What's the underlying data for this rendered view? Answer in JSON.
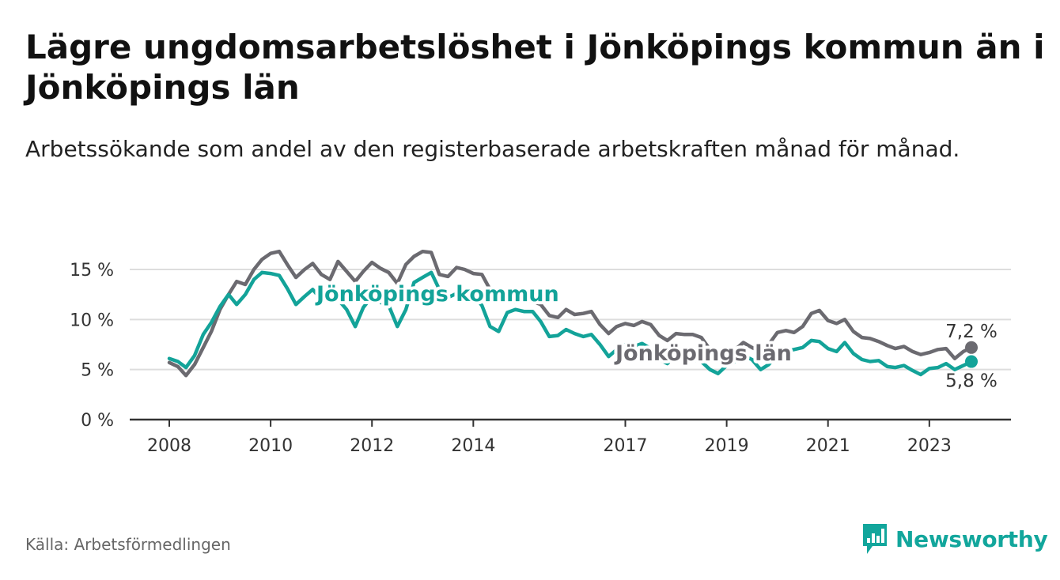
{
  "title": "Lägre ungdomsarbetslöshet i Jönköpings kommun än i Jönköpings län",
  "subtitle": "Arbetssökande som andel av den registerbaserade arbetskraften månad för månad.",
  "source": "Källa: Arbetsförmedlingen",
  "brand": "Newsworthy",
  "colors": {
    "kommun": "#13a399",
    "lan": "#6b6a70",
    "grid": "#dddddd",
    "axis": "#333333",
    "brand": "#12a69c"
  },
  "chart_data": {
    "type": "line",
    "title": "Lägre ungdomsarbetslöshet i Jönköpings kommun än i Jönköpings län",
    "xlabel": "",
    "ylabel": "",
    "x_range": [
      2008.0,
      2023.83
    ],
    "ylim": [
      0,
      15
    ],
    "y_ticks": [
      0,
      5,
      10,
      15
    ],
    "y_tick_labels": [
      "0 %",
      "5 %",
      "10 %",
      "15 %"
    ],
    "x_ticks": [
      2008,
      2010,
      2012,
      2014,
      2017,
      2019,
      2021,
      2023
    ],
    "x_tick_labels": [
      "2008",
      "2010",
      "2012",
      "2014",
      "2017",
      "2019",
      "2021",
      "2023"
    ],
    "grid": true,
    "series": [
      {
        "name": "Jönköpings län",
        "key": "lan",
        "end_label": "7,2 %",
        "points": [
          [
            2008.0,
            5.7
          ],
          [
            2008.17,
            5.3
          ],
          [
            2008.33,
            4.4
          ],
          [
            2008.5,
            5.5
          ],
          [
            2008.67,
            7.2
          ],
          [
            2008.83,
            8.8
          ],
          [
            2009.0,
            11.0
          ],
          [
            2009.17,
            12.5
          ],
          [
            2009.33,
            13.8
          ],
          [
            2009.5,
            13.5
          ],
          [
            2009.67,
            15.0
          ],
          [
            2009.83,
            16.0
          ],
          [
            2010.0,
            16.6
          ],
          [
            2010.17,
            16.8
          ],
          [
            2010.33,
            15.5
          ],
          [
            2010.5,
            14.2
          ],
          [
            2010.67,
            15.0
          ],
          [
            2010.83,
            15.6
          ],
          [
            2011.0,
            14.5
          ],
          [
            2011.17,
            14.0
          ],
          [
            2011.33,
            15.8
          ],
          [
            2011.5,
            14.8
          ],
          [
            2011.67,
            13.8
          ],
          [
            2011.83,
            14.8
          ],
          [
            2012.0,
            15.7
          ],
          [
            2012.17,
            15.1
          ],
          [
            2012.33,
            14.7
          ],
          [
            2012.5,
            13.6
          ],
          [
            2012.67,
            15.5
          ],
          [
            2012.83,
            16.3
          ],
          [
            2013.0,
            16.8
          ],
          [
            2013.17,
            16.7
          ],
          [
            2013.33,
            14.5
          ],
          [
            2013.5,
            14.3
          ],
          [
            2013.67,
            15.2
          ],
          [
            2013.83,
            15.0
          ],
          [
            2014.0,
            14.6
          ],
          [
            2014.17,
            14.5
          ],
          [
            2014.33,
            13.0
          ],
          [
            2014.5,
            12.5
          ],
          [
            2014.67,
            12.0
          ],
          [
            2014.83,
            11.7
          ],
          [
            2015.0,
            11.9
          ],
          [
            2015.17,
            11.8
          ],
          [
            2015.33,
            11.5
          ],
          [
            2015.5,
            10.4
          ],
          [
            2015.67,
            10.2
          ],
          [
            2015.83,
            11.0
          ],
          [
            2016.0,
            10.5
          ],
          [
            2016.17,
            10.6
          ],
          [
            2016.33,
            10.8
          ],
          [
            2016.5,
            9.5
          ],
          [
            2016.67,
            8.6
          ],
          [
            2016.83,
            9.3
          ],
          [
            2017.0,
            9.6
          ],
          [
            2017.17,
            9.4
          ],
          [
            2017.33,
            9.8
          ],
          [
            2017.5,
            9.5
          ],
          [
            2017.67,
            8.4
          ],
          [
            2017.83,
            7.9
          ],
          [
            2018.0,
            8.6
          ],
          [
            2018.17,
            8.5
          ],
          [
            2018.33,
            8.5
          ],
          [
            2018.5,
            8.2
          ],
          [
            2018.67,
            7.0
          ],
          [
            2018.83,
            6.3
          ],
          [
            2019.0,
            6.8
          ],
          [
            2019.17,
            7.0
          ],
          [
            2019.33,
            7.7
          ],
          [
            2019.5,
            7.2
          ],
          [
            2019.67,
            6.8
          ],
          [
            2019.83,
            7.5
          ],
          [
            2020.0,
            8.7
          ],
          [
            2020.17,
            8.9
          ],
          [
            2020.33,
            8.7
          ],
          [
            2020.5,
            9.3
          ],
          [
            2020.67,
            10.6
          ],
          [
            2020.83,
            10.9
          ],
          [
            2021.0,
            9.9
          ],
          [
            2021.17,
            9.6
          ],
          [
            2021.33,
            10.0
          ],
          [
            2021.5,
            8.8
          ],
          [
            2021.67,
            8.2
          ],
          [
            2021.83,
            8.1
          ],
          [
            2022.0,
            7.8
          ],
          [
            2022.17,
            7.4
          ],
          [
            2022.33,
            7.1
          ],
          [
            2022.5,
            7.3
          ],
          [
            2022.67,
            6.8
          ],
          [
            2022.83,
            6.5
          ],
          [
            2023.0,
            6.7
          ],
          [
            2023.17,
            7.0
          ],
          [
            2023.33,
            7.1
          ],
          [
            2023.5,
            6.1
          ],
          [
            2023.67,
            6.8
          ],
          [
            2023.83,
            7.2
          ]
        ]
      },
      {
        "name": "Jönköpings kommun",
        "key": "kommun",
        "end_label": "5,8 %",
        "points": [
          [
            2008.0,
            6.1
          ],
          [
            2008.17,
            5.8
          ],
          [
            2008.33,
            5.2
          ],
          [
            2008.5,
            6.4
          ],
          [
            2008.67,
            8.5
          ],
          [
            2008.83,
            9.7
          ],
          [
            2009.0,
            11.3
          ],
          [
            2009.17,
            12.5
          ],
          [
            2009.33,
            11.5
          ],
          [
            2009.5,
            12.5
          ],
          [
            2009.67,
            14.0
          ],
          [
            2009.83,
            14.7
          ],
          [
            2010.0,
            14.6
          ],
          [
            2010.17,
            14.4
          ],
          [
            2010.33,
            13.1
          ],
          [
            2010.5,
            11.5
          ],
          [
            2010.67,
            12.3
          ],
          [
            2010.83,
            13.0
          ],
          [
            2011.0,
            12.0
          ],
          [
            2011.17,
            11.8
          ],
          [
            2011.33,
            12.0
          ],
          [
            2011.5,
            11.0
          ],
          [
            2011.67,
            9.3
          ],
          [
            2011.83,
            11.2
          ],
          [
            2012.0,
            12.3
          ],
          [
            2012.17,
            11.7
          ],
          [
            2012.33,
            11.4
          ],
          [
            2012.5,
            9.3
          ],
          [
            2012.67,
            11.0
          ],
          [
            2012.83,
            13.7
          ],
          [
            2013.0,
            14.2
          ],
          [
            2013.17,
            14.7
          ],
          [
            2013.33,
            13.0
          ],
          [
            2013.5,
            12.2
          ],
          [
            2013.67,
            12.6
          ],
          [
            2013.83,
            12.7
          ],
          [
            2014.0,
            12.5
          ],
          [
            2014.17,
            11.4
          ],
          [
            2014.33,
            9.3
          ],
          [
            2014.5,
            8.8
          ],
          [
            2014.67,
            10.7
          ],
          [
            2014.83,
            11.0
          ],
          [
            2015.0,
            10.8
          ],
          [
            2015.17,
            10.8
          ],
          [
            2015.33,
            9.8
          ],
          [
            2015.5,
            8.3
          ],
          [
            2015.67,
            8.4
          ],
          [
            2015.83,
            9.0
          ],
          [
            2016.0,
            8.6
          ],
          [
            2016.17,
            8.3
          ],
          [
            2016.33,
            8.5
          ],
          [
            2016.5,
            7.5
          ],
          [
            2016.67,
            6.3
          ],
          [
            2016.83,
            7.0
          ],
          [
            2017.0,
            7.5
          ],
          [
            2017.17,
            7.3
          ],
          [
            2017.33,
            7.6
          ],
          [
            2017.5,
            7.1
          ],
          [
            2017.67,
            6.0
          ],
          [
            2017.83,
            5.6
          ],
          [
            2018.0,
            6.5
          ],
          [
            2018.17,
            6.2
          ],
          [
            2018.33,
            6.0
          ],
          [
            2018.5,
            5.8
          ],
          [
            2018.67,
            5.0
          ],
          [
            2018.83,
            4.6
          ],
          [
            2019.0,
            5.4
          ],
          [
            2019.17,
            5.8
          ],
          [
            2019.33,
            6.4
          ],
          [
            2019.5,
            6.0
          ],
          [
            2019.67,
            5.0
          ],
          [
            2019.83,
            5.5
          ],
          [
            2020.0,
            6.5
          ],
          [
            2020.17,
            6.8
          ],
          [
            2020.33,
            7.0
          ],
          [
            2020.5,
            7.2
          ],
          [
            2020.67,
            7.9
          ],
          [
            2020.83,
            7.8
          ],
          [
            2021.0,
            7.1
          ],
          [
            2021.17,
            6.8
          ],
          [
            2021.33,
            7.7
          ],
          [
            2021.5,
            6.6
          ],
          [
            2021.67,
            6.0
          ],
          [
            2021.83,
            5.8
          ],
          [
            2022.0,
            5.9
          ],
          [
            2022.17,
            5.3
          ],
          [
            2022.33,
            5.2
          ],
          [
            2022.5,
            5.4
          ],
          [
            2022.67,
            4.9
          ],
          [
            2022.83,
            4.5
          ],
          [
            2023.0,
            5.1
          ],
          [
            2023.17,
            5.2
          ],
          [
            2023.33,
            5.6
          ],
          [
            2023.5,
            5.0
          ],
          [
            2023.67,
            5.4
          ],
          [
            2023.83,
            5.8
          ]
        ]
      }
    ],
    "annotations": [
      {
        "text": "Jönköpings kommun",
        "series": "kommun"
      },
      {
        "text": "Jönköpings län",
        "series": "lan"
      }
    ]
  }
}
